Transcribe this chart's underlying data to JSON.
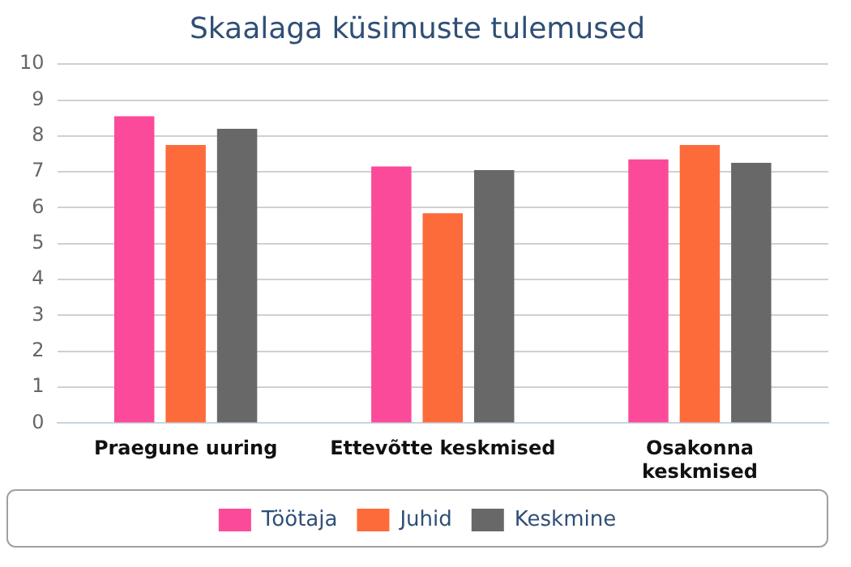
{
  "chart_data": {
    "type": "bar",
    "title": "Skaalaga küsimuste tulemused",
    "categories": [
      "Praegune uuring",
      "Ettevõtte keskmised",
      "Osakonna keskmised"
    ],
    "series": [
      {
        "name": "Töötaja",
        "color": "#fc4a9a",
        "values": [
          8.55,
          7.15,
          7.35
        ]
      },
      {
        "name": "Juhid",
        "color": "#fd6b3b",
        "values": [
          7.75,
          5.85,
          7.75
        ]
      },
      {
        "name": "Keskmine",
        "color": "#686868",
        "values": [
          8.2,
          7.05,
          7.25
        ]
      }
    ],
    "ylim": [
      0,
      10
    ],
    "yticks": [
      0,
      1,
      2,
      3,
      4,
      5,
      6,
      7,
      8,
      9,
      10
    ],
    "grid": "y",
    "legend": "bottom"
  }
}
